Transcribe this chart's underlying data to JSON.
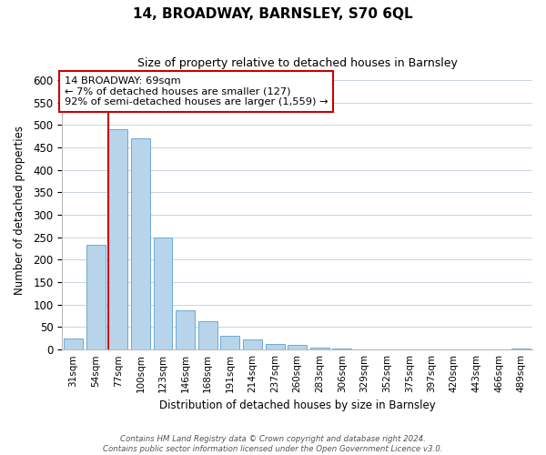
{
  "title": "14, BROADWAY, BARNSLEY, S70 6QL",
  "subtitle": "Size of property relative to detached houses in Barnsley",
  "xlabel": "Distribution of detached houses by size in Barnsley",
  "ylabel": "Number of detached properties",
  "bar_labels": [
    "31sqm",
    "54sqm",
    "77sqm",
    "100sqm",
    "123sqm",
    "146sqm",
    "168sqm",
    "191sqm",
    "214sqm",
    "237sqm",
    "260sqm",
    "283sqm",
    "306sqm",
    "329sqm",
    "352sqm",
    "375sqm",
    "397sqm",
    "420sqm",
    "443sqm",
    "466sqm",
    "489sqm"
  ],
  "bar_heights": [
    25,
    233,
    490,
    470,
    250,
    88,
    63,
    30,
    22,
    13,
    10,
    5,
    3,
    1,
    1,
    0,
    0,
    0,
    0,
    0,
    3
  ],
  "bar_color": "#b8d4ea",
  "bar_edge_color": "#6aaad4",
  "annotation_title": "14 BROADWAY: 69sqm",
  "annotation_line1": "← 7% of detached houses are smaller (127)",
  "annotation_line2": "92% of semi-detached houses are larger (1,559) →",
  "vline_color": "#cc0000",
  "annotation_box_edge": "#cc0000",
  "footer1": "Contains HM Land Registry data © Crown copyright and database right 2024.",
  "footer2": "Contains public sector information licensed under the Open Government Licence v3.0.",
  "ylim": [
    0,
    620
  ],
  "yticks": [
    0,
    50,
    100,
    150,
    200,
    250,
    300,
    350,
    400,
    450,
    500,
    550,
    600
  ],
  "figsize": [
    6.0,
    5.0
  ],
  "dpi": 100
}
